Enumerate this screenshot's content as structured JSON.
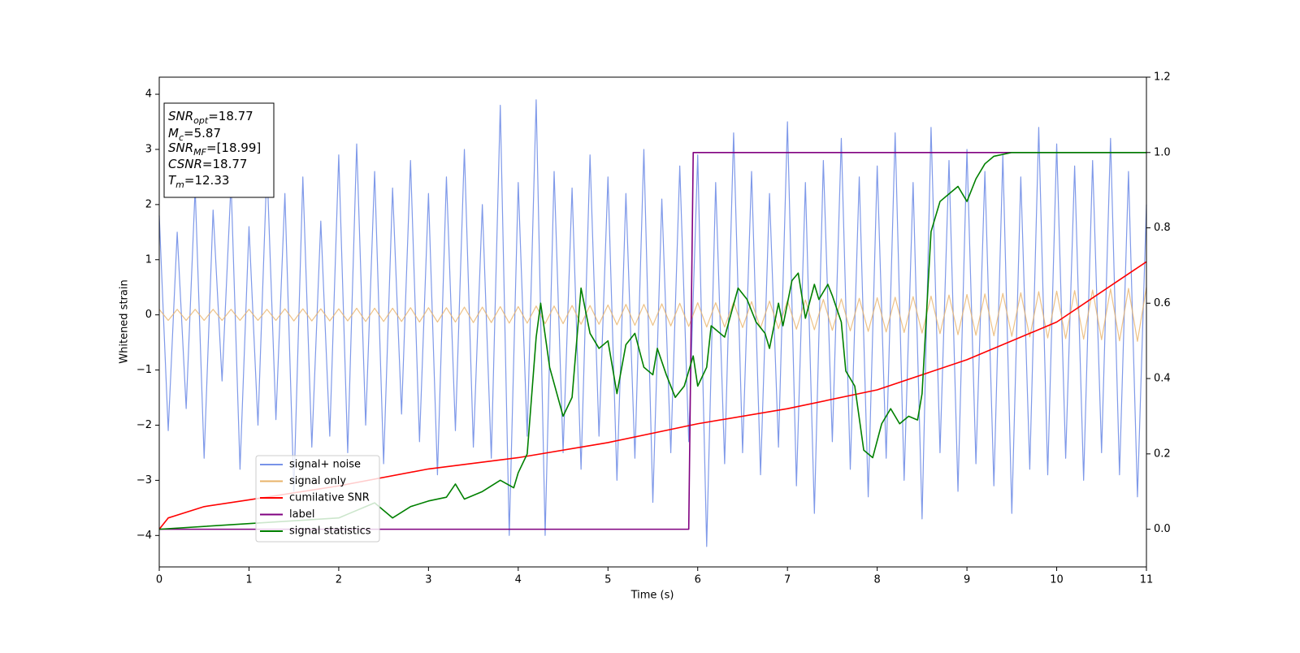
{
  "chart_data": {
    "type": "line",
    "xlabel": "Time (s)",
    "ylabel": "Whitened strain",
    "xlim": [
      0,
      11
    ],
    "xticks": [
      0,
      1,
      2,
      3,
      4,
      5,
      6,
      7,
      8,
      9,
      10,
      11
    ],
    "ylim": [
      -4.57,
      4.31
    ],
    "yticks": [
      -4,
      -3,
      -2,
      -1,
      0,
      1,
      2,
      3,
      4
    ],
    "y2lim": [
      -0.1,
      1.2
    ],
    "y2ticks": [
      {
        "value": 0,
        "label": "0.0"
      },
      0.2,
      0.4,
      0.6,
      0.8,
      {
        "value": 1,
        "label": "1.0"
      },
      1.2
    ],
    "legend": "lower left",
    "annotation_box": [
      {
        "name": "SNR",
        "sub": "opt",
        "text": "=18.77"
      },
      {
        "name": "M",
        "sub": "c",
        "text": "=5.87"
      },
      {
        "name": "SNR",
        "sub": "MF",
        "text": "=[18.99]"
      },
      {
        "name": "CSNR",
        "text": "=18.77"
      },
      {
        "name": "T",
        "sub": "m",
        "text": "=12.33"
      }
    ],
    "x": [
      0,
      0.1,
      0.2,
      0.3,
      0.4,
      0.5,
      0.6,
      0.7,
      0.8,
      0.9,
      1,
      1.1,
      1.2,
      1.3,
      1.4,
      1.5,
      1.6,
      1.7,
      1.8,
      1.9,
      2,
      2.1,
      2.2,
      2.3,
      2.4,
      2.5,
      2.6,
      2.7,
      2.8,
      2.9,
      3,
      3.1,
      3.2,
      3.3,
      3.4,
      3.5,
      3.6,
      3.7,
      3.8,
      3.9,
      4,
      4.1,
      4.2,
      4.3,
      4.4,
      4.5,
      4.6,
      4.7,
      4.8,
      4.9,
      5,
      5.1,
      5.2,
      5.3,
      5.4,
      5.5,
      5.6,
      5.7,
      5.8,
      5.9,
      6,
      6.1,
      6.2,
      6.3,
      6.4,
      6.5,
      6.6,
      6.7,
      6.8,
      6.9,
      7,
      7.1,
      7.2,
      7.3,
      7.4,
      7.5,
      7.6,
      7.7,
      7.8,
      7.9,
      8,
      8.1,
      8.2,
      8.3,
      8.4,
      8.5,
      8.6,
      8.7,
      8.8,
      8.9,
      9,
      9.1,
      9.2,
      9.3,
      9.4,
      9.5,
      9.6,
      9.7,
      9.8,
      9.9,
      10,
      10.1,
      10.2,
      10.3,
      10.4,
      10.5,
      10.6,
      10.7,
      10.8,
      10.9,
      11
    ],
    "series": [
      {
        "name": "signal+ noise",
        "color": "#7893e8",
        "values": [
          1.8,
          -2.1,
          1.5,
          -1.7,
          2.3,
          -2.6,
          1.9,
          -1.2,
          2.4,
          -2.8,
          1.6,
          -2.0,
          2.7,
          -1.9,
          2.2,
          -3.2,
          2.5,
          -2.4,
          1.7,
          -2.2,
          2.9,
          -2.5,
          3.1,
          -2.0,
          2.6,
          -2.7,
          2.3,
          -1.8,
          2.8,
          -2.3,
          2.2,
          -2.9,
          2.5,
          -2.1,
          3.0,
          -2.4,
          2.0,
          -2.6,
          3.8,
          -4.0,
          2.4,
          -2.2,
          3.9,
          -4.0,
          2.6,
          -2.5,
          2.3,
          -2.8,
          2.9,
          -2.2,
          2.5,
          -3.0,
          2.2,
          -2.6,
          3.0,
          -3.4,
          2.1,
          -2.5,
          2.7,
          -2.3,
          2.9,
          -4.2,
          2.4,
          -2.7,
          3.3,
          -2.5,
          2.6,
          -2.9,
          2.2,
          -2.4,
          3.5,
          -3.1,
          2.4,
          -3.6,
          2.8,
          -2.3,
          3.2,
          -2.8,
          2.5,
          -3.3,
          2.7,
          -2.6,
          3.3,
          -3.0,
          2.4,
          -3.7,
          3.4,
          -2.5,
          2.8,
          -3.2,
          3.0,
          -2.7,
          2.6,
          -3.1,
          2.9,
          -3.6,
          2.5,
          -2.8,
          3.4,
          -2.9,
          3.1,
          -2.6,
          2.7,
          -3.0,
          2.8,
          -2.5,
          3.2,
          -2.9,
          2.6,
          -3.3,
          2.0
        ]
      },
      {
        "name": "signal only",
        "color": "#e8b36a",
        "values": [
          0.1,
          -0.1,
          0.1,
          -0.1,
          0.1,
          -0.1,
          0.1,
          -0.1,
          0.1,
          -0.1,
          0.1,
          -0.1,
          0.1,
          -0.1,
          0.11,
          -0.11,
          0.11,
          -0.11,
          0.11,
          -0.11,
          0.11,
          -0.11,
          0.12,
          -0.12,
          0.12,
          -0.12,
          0.12,
          -0.12,
          0.13,
          -0.13,
          0.13,
          -0.13,
          0.13,
          -0.13,
          0.14,
          -0.14,
          0.14,
          -0.14,
          0.15,
          -0.15,
          0.15,
          -0.15,
          0.16,
          -0.16,
          0.16,
          -0.16,
          0.17,
          -0.17,
          0.17,
          -0.17,
          0.18,
          -0.18,
          0.19,
          -0.19,
          0.19,
          -0.19,
          0.2,
          -0.2,
          0.21,
          -0.21,
          0.22,
          -0.22,
          0.22,
          -0.22,
          0.23,
          -0.23,
          0.24,
          -0.24,
          0.25,
          -0.25,
          0.26,
          -0.26,
          0.27,
          -0.27,
          0.28,
          -0.28,
          0.29,
          -0.29,
          0.3,
          -0.3,
          0.31,
          -0.31,
          0.32,
          -0.32,
          0.33,
          -0.33,
          0.34,
          -0.34,
          0.36,
          -0.36,
          0.37,
          -0.37,
          0.38,
          -0.38,
          0.39,
          -0.39,
          0.4,
          -0.4,
          0.42,
          -0.42,
          0.43,
          -0.43,
          0.44,
          -0.44,
          0.45,
          -0.45,
          0.47,
          -0.47,
          0.48,
          -0.48,
          0.5
        ]
      },
      {
        "name": "cumilative SNR",
        "color": "#ff0000",
        "axis": "y2",
        "x": [
          0,
          0.1,
          0.5,
          1,
          2,
          3,
          4,
          5,
          6,
          7,
          8,
          9,
          10,
          11
        ],
        "values": [
          0.0,
          0.03,
          0.06,
          0.078,
          0.115,
          0.16,
          0.19,
          0.23,
          0.28,
          0.32,
          0.37,
          0.45,
          0.55,
          0.71
        ]
      },
      {
        "name": "label",
        "color": "#800080",
        "axis": "y2",
        "x": [
          0,
          5.9,
          5.95,
          11
        ],
        "values": [
          0,
          0,
          1,
          1
        ]
      },
      {
        "name": "signal statistics",
        "color": "#008000",
        "axis": "y2",
        "x": [
          0,
          2,
          2.1,
          2.4,
          2.6,
          2.8,
          3,
          3.2,
          3.3,
          3.4,
          3.6,
          3.8,
          3.95,
          4,
          4.1,
          4.2,
          4.25,
          4.35,
          4.5,
          4.6,
          4.7,
          4.8,
          4.9,
          5,
          5.1,
          5.2,
          5.3,
          5.4,
          5.5,
          5.55,
          5.65,
          5.75,
          5.85,
          5.95,
          6,
          6.1,
          6.15,
          6.3,
          6.45,
          6.55,
          6.65,
          6.75,
          6.8,
          6.9,
          6.95,
          7.05,
          7.12,
          7.2,
          7.3,
          7.35,
          7.45,
          7.5,
          7.6,
          7.65,
          7.75,
          7.85,
          7.95,
          8.05,
          8.15,
          8.25,
          8.35,
          8.45,
          8.5,
          8.6,
          8.7,
          8.8,
          8.9,
          9,
          9.1,
          9.2,
          9.3,
          9.5,
          10,
          11
        ],
        "values": [
          0,
          0.03,
          0.04,
          0.07,
          0.03,
          0.06,
          0.075,
          0.085,
          0.12,
          0.08,
          0.1,
          0.13,
          0.11,
          0.15,
          0.2,
          0.51,
          0.6,
          0.43,
          0.3,
          0.35,
          0.64,
          0.52,
          0.48,
          0.5,
          0.36,
          0.49,
          0.52,
          0.43,
          0.41,
          0.48,
          0.41,
          0.35,
          0.38,
          0.46,
          0.38,
          0.43,
          0.54,
          0.51,
          0.64,
          0.61,
          0.55,
          0.52,
          0.48,
          0.6,
          0.54,
          0.66,
          0.68,
          0.56,
          0.65,
          0.61,
          0.65,
          0.62,
          0.55,
          0.42,
          0.38,
          0.21,
          0.19,
          0.28,
          0.32,
          0.28,
          0.3,
          0.29,
          0.36,
          0.79,
          0.87,
          0.89,
          0.91,
          0.87,
          0.93,
          0.97,
          0.99,
          1.0,
          1.0,
          1.0
        ]
      }
    ]
  }
}
